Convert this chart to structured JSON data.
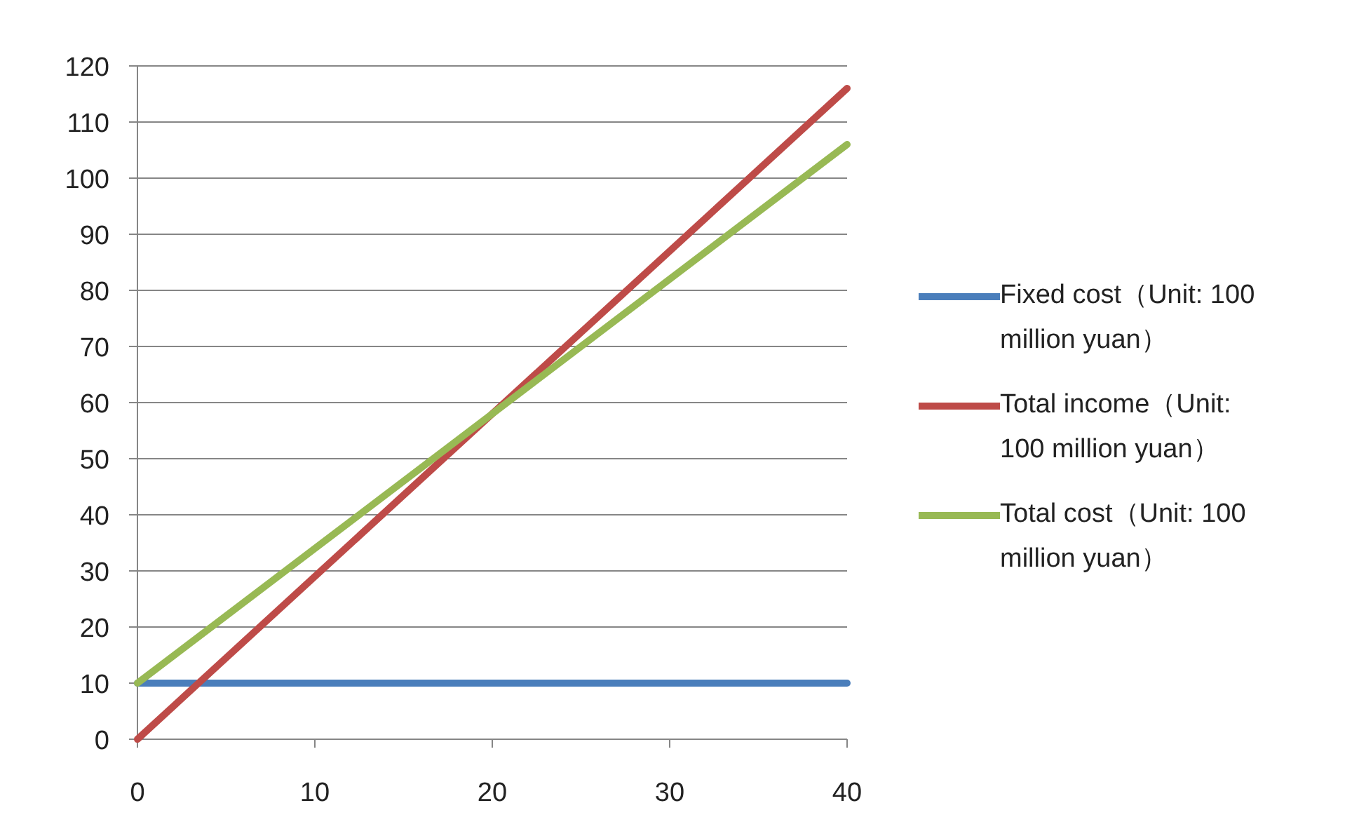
{
  "chart_data": {
    "type": "line",
    "x": [
      0,
      40
    ],
    "xlim": [
      0,
      40
    ],
    "xticks": [
      0,
      10,
      20,
      30,
      40
    ],
    "ylim": [
      0,
      120
    ],
    "yticks": [
      0,
      10,
      20,
      30,
      40,
      50,
      60,
      70,
      80,
      90,
      100,
      110,
      120
    ],
    "grid": "y",
    "legend": "right",
    "marker": "none",
    "line_style": "solid",
    "series": [
      {
        "name": "Fixed cost（Unit: 100 million yuan）",
        "color": "#4a7ebb",
        "values": [
          10,
          10
        ]
      },
      {
        "name": "Total income（Unit: 100 million yuan）",
        "color": "#be4b48",
        "values": [
          0,
          116
        ]
      },
      {
        "name": "Total cost（Unit: 100 million yuan）",
        "color": "#98b954",
        "values": [
          10,
          106
        ]
      }
    ]
  }
}
